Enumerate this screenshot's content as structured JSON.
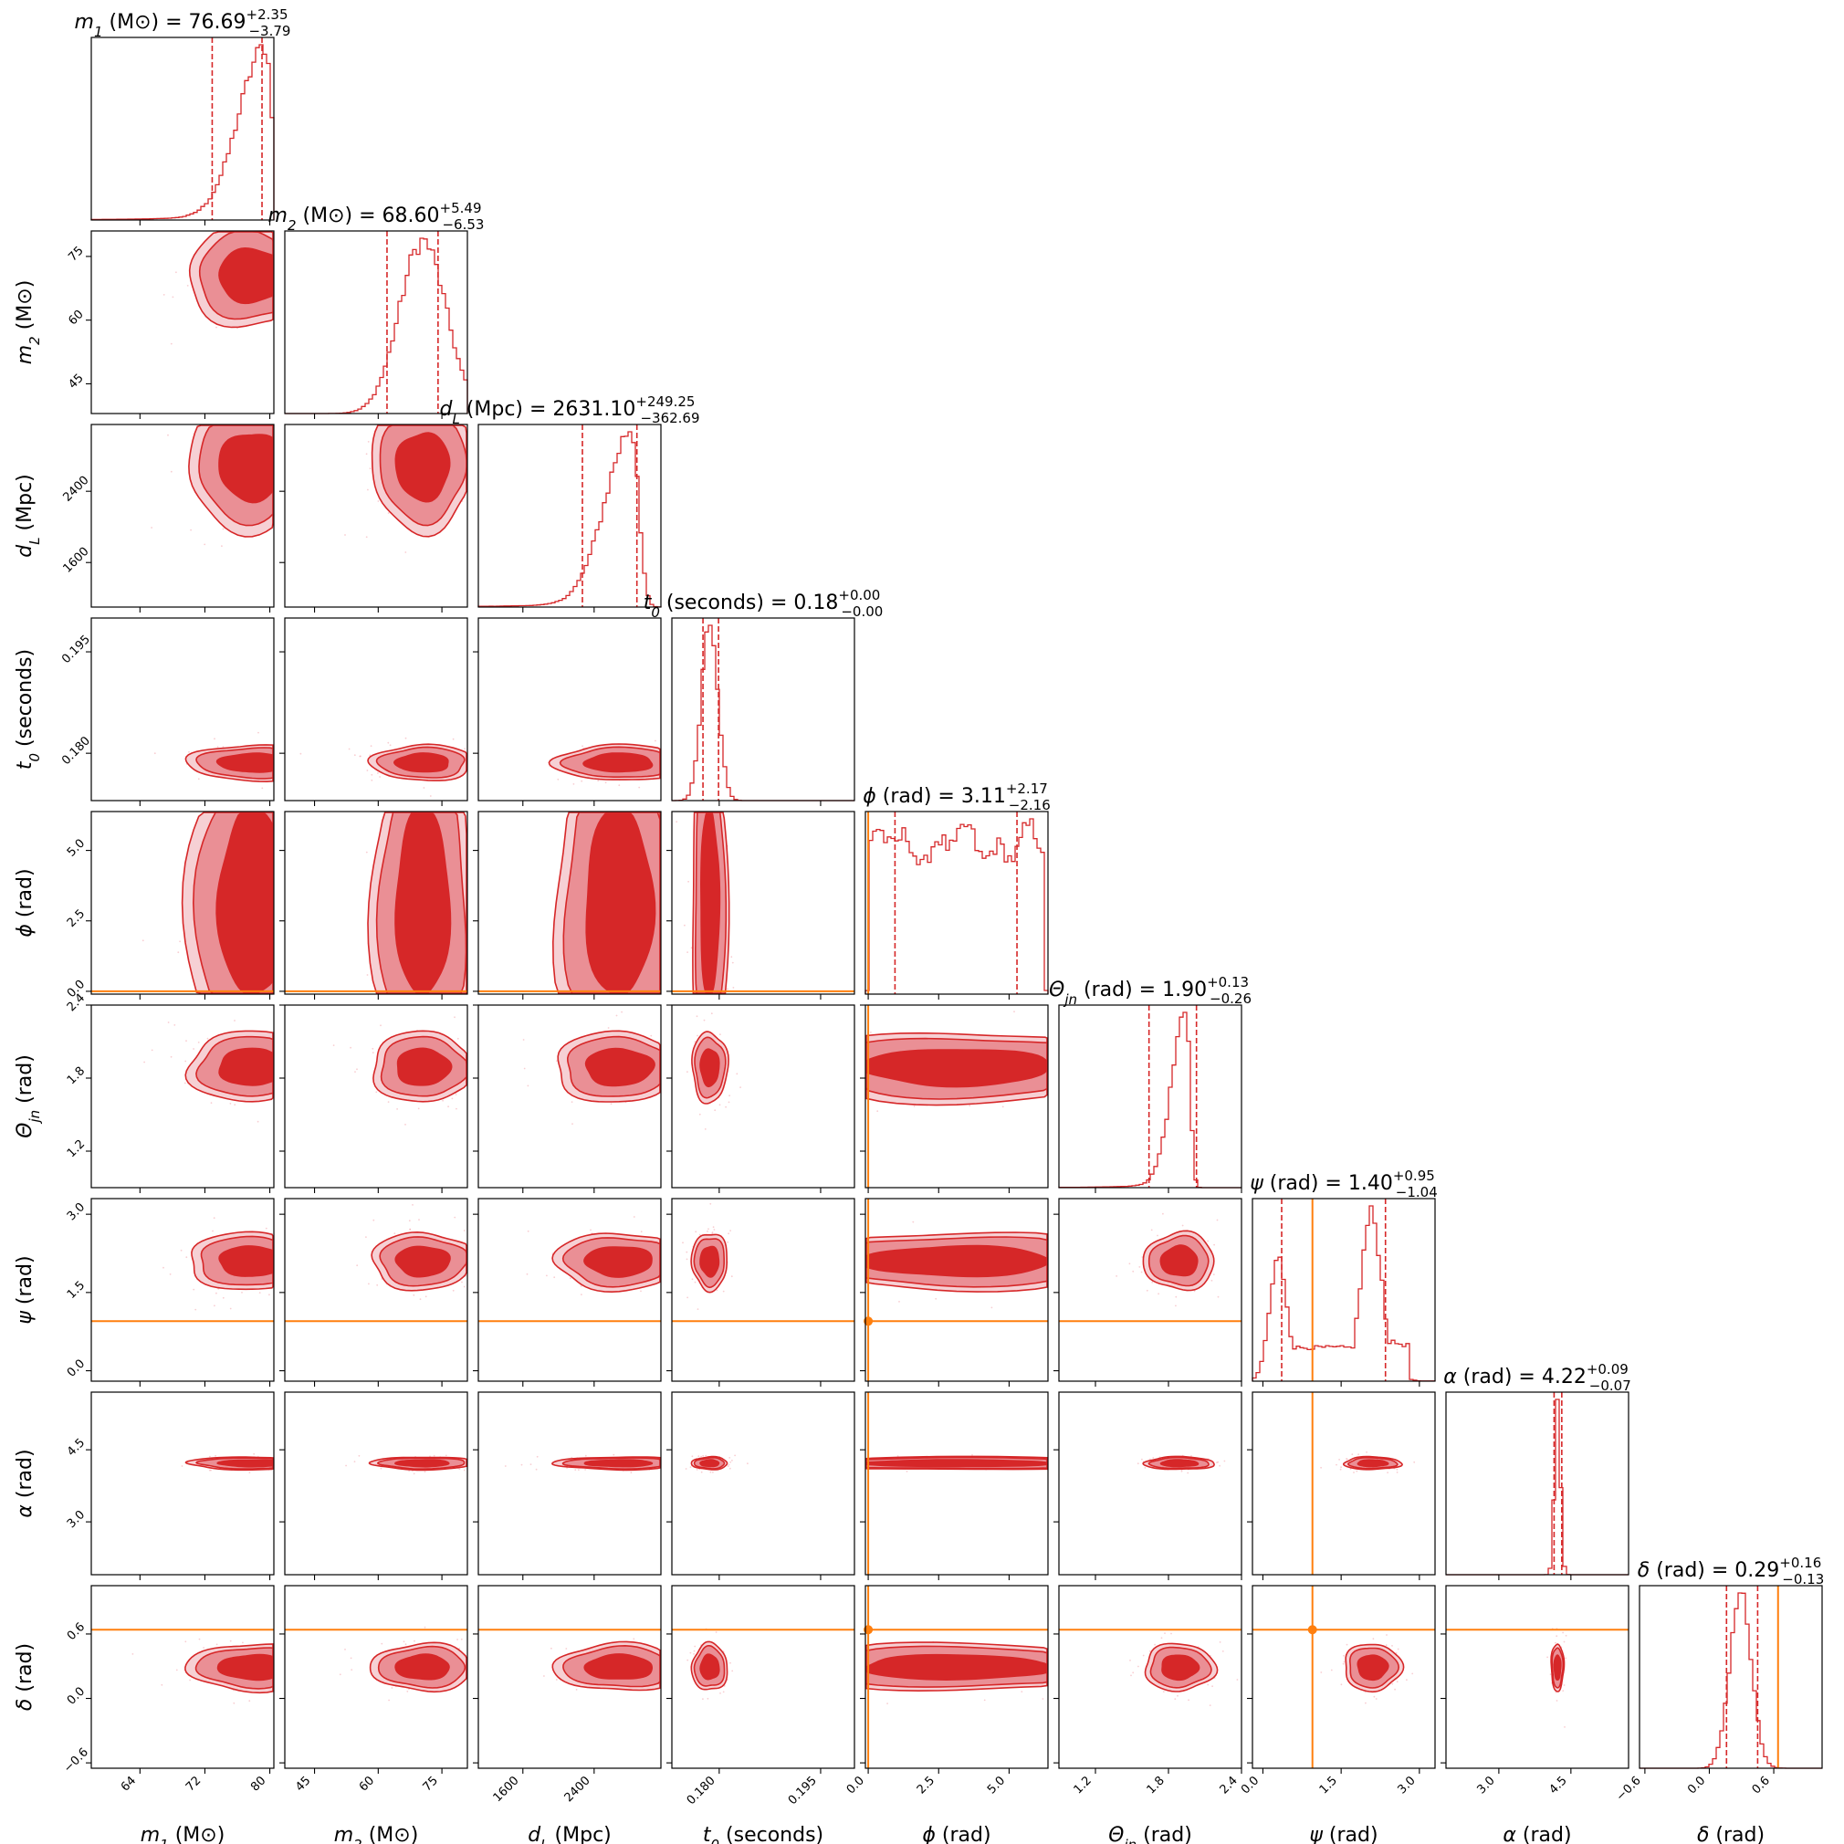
{
  "colors": {
    "contour_dark": "#d62728",
    "contour_mid": "#ea8f95",
    "contour_light": "#f6d0d4",
    "line": "#d62728",
    "truth": "#ff7f0e",
    "scatter": "#f3a6ad"
  },
  "chart_data": {
    "type": "corner",
    "params": [
      {
        "key": "m1",
        "label_main": "m",
        "label_sub": "1",
        "label_unit": " (M⊙)",
        "axis_label": "m1 (M⊙)",
        "range": [
          58,
          80.5
        ],
        "ticks": [
          "64",
          "72",
          "80"
        ],
        "tick_values": [
          64,
          72,
          80
        ],
        "title_value": " = 76.69",
        "title_plus": "+2.35",
        "title_minus": "−3.79",
        "median": 76.69,
        "lo": 72.9,
        "hi": 79.04,
        "mode": 79.5,
        "sigma": 3.3,
        "skew": "left",
        "truth": null
      },
      {
        "key": "m2",
        "label_main": "m",
        "label_sub": "2",
        "label_unit": " (M⊙)",
        "axis_label": "m2 (M⊙)",
        "range": [
          38,
          81
        ],
        "ticks": [
          "45",
          "60",
          "75"
        ],
        "tick_values": [
          45,
          60,
          75
        ],
        "title_value": " = 68.60",
        "title_plus": "+5.49",
        "title_minus": "−6.53",
        "median": 68.6,
        "lo": 62.07,
        "hi": 74.09,
        "mode": 70.5,
        "sigma": 5.5,
        "skew": "none",
        "truth": null
      },
      {
        "key": "dl",
        "label_main": "d",
        "label_sub": "L",
        "label_unit": " (Mpc)",
        "axis_label": "dL (Mpc)",
        "range": [
          1100,
          3150
        ],
        "ticks": [
          "1600",
          "2400"
        ],
        "tick_values": [
          1600,
          2400
        ],
        "title_value": " = 2631.10",
        "title_plus": "+249.25",
        "title_minus": "−362.69",
        "median": 2631.1,
        "lo": 2268.41,
        "hi": 2880.35,
        "mode": 2830,
        "sigma": 300,
        "skew": "left",
        "truth": null
      },
      {
        "key": "t0",
        "label_main": "t",
        "label_sub": "0",
        "label_unit": " (seconds)",
        "axis_label": "t0 (seconds)",
        "range": [
          0.173,
          0.2
        ],
        "ticks": [
          "0.180",
          "0.195"
        ],
        "tick_values": [
          0.18,
          0.195
        ],
        "title_value": " = 0.18",
        "title_plus": "+0.00",
        "title_minus": "−0.00",
        "median": 0.1785,
        "lo": 0.1776,
        "hi": 0.1799,
        "mode": 0.1786,
        "sigma": 0.0012,
        "skew": "none",
        "truth": null
      },
      {
        "key": "phi",
        "label_main": "ϕ",
        "label_sub": "",
        "label_unit": " (rad)",
        "axis_label": "ϕ (rad)",
        "range": [
          -0.1,
          6.38
        ],
        "ticks": [
          "0.0",
          "2.5",
          "5.0"
        ],
        "tick_values": [
          0,
          2.5,
          5.0
        ],
        "title_value": " = 3.11",
        "title_plus": "+2.17",
        "title_minus": "−2.16",
        "median": 3.11,
        "lo": 0.95,
        "hi": 5.28,
        "mode": 3.1,
        "sigma": 0,
        "skew": "flat",
        "truth": 0.0
      },
      {
        "key": "theta",
        "label_main": "Θ",
        "label_sub": "jn",
        "label_unit": " (rad)",
        "axis_label": "Θjn (rad)",
        "range": [
          0.9,
          2.4
        ],
        "ticks": [
          "1.2",
          "1.8",
          "2.4"
        ],
        "tick_values": [
          1.2,
          1.8,
          2.4
        ],
        "title_value": " = 1.90",
        "title_plus": "+0.13",
        "title_minus": "−0.26",
        "median": 1.9,
        "lo": 1.64,
        "hi": 2.03,
        "mode": 1.95,
        "sigma": 0.12,
        "skew": "left",
        "truth": null
      },
      {
        "key": "psi",
        "label_main": "ψ",
        "label_sub": "",
        "label_unit": " (rad)",
        "axis_label": "ψ (rad)",
        "range": [
          -0.2,
          3.3
        ],
        "ticks": [
          "0.0",
          "1.5",
          "3.0"
        ],
        "tick_values": [
          0,
          1.5,
          3.0
        ],
        "title_value": " = 1.40",
        "title_plus": "+0.95",
        "title_minus": "−1.04",
        "median": 1.4,
        "lo": 0.36,
        "hi": 2.35,
        "mode": 2.1,
        "sigma": 0.25,
        "skew": "bimodal",
        "truth": 0.95
      },
      {
        "key": "alpha",
        "label_main": "α",
        "label_sub": "",
        "label_unit": " (rad)",
        "axis_label": "α (rad)",
        "range": [
          1.9,
          5.7
        ],
        "ticks": [
          "3.0",
          "4.5"
        ],
        "tick_values": [
          3.0,
          4.5
        ],
        "title_value": " = 4.22",
        "title_plus": "+0.09",
        "title_minus": "−0.07",
        "median": 4.22,
        "lo": 4.15,
        "hi": 4.31,
        "mode": 4.22,
        "sigma": 0.06,
        "skew": "none",
        "truth": null
      },
      {
        "key": "delta",
        "label_main": "δ",
        "label_sub": "",
        "label_unit": " (rad)",
        "axis_label": "δ (rad)",
        "range": [
          -0.65,
          1.05
        ],
        "ticks": [
          "−0.6",
          "0.0",
          "0.6"
        ],
        "tick_values": [
          -0.6,
          0.0,
          0.6
        ],
        "title_value": " = 0.29",
        "title_plus": "+0.16",
        "title_minus": "−0.13",
        "median": 0.29,
        "lo": 0.16,
        "hi": 0.45,
        "mode": 0.29,
        "sigma": 0.1,
        "skew": "none",
        "truth": 0.64
      }
    ]
  }
}
